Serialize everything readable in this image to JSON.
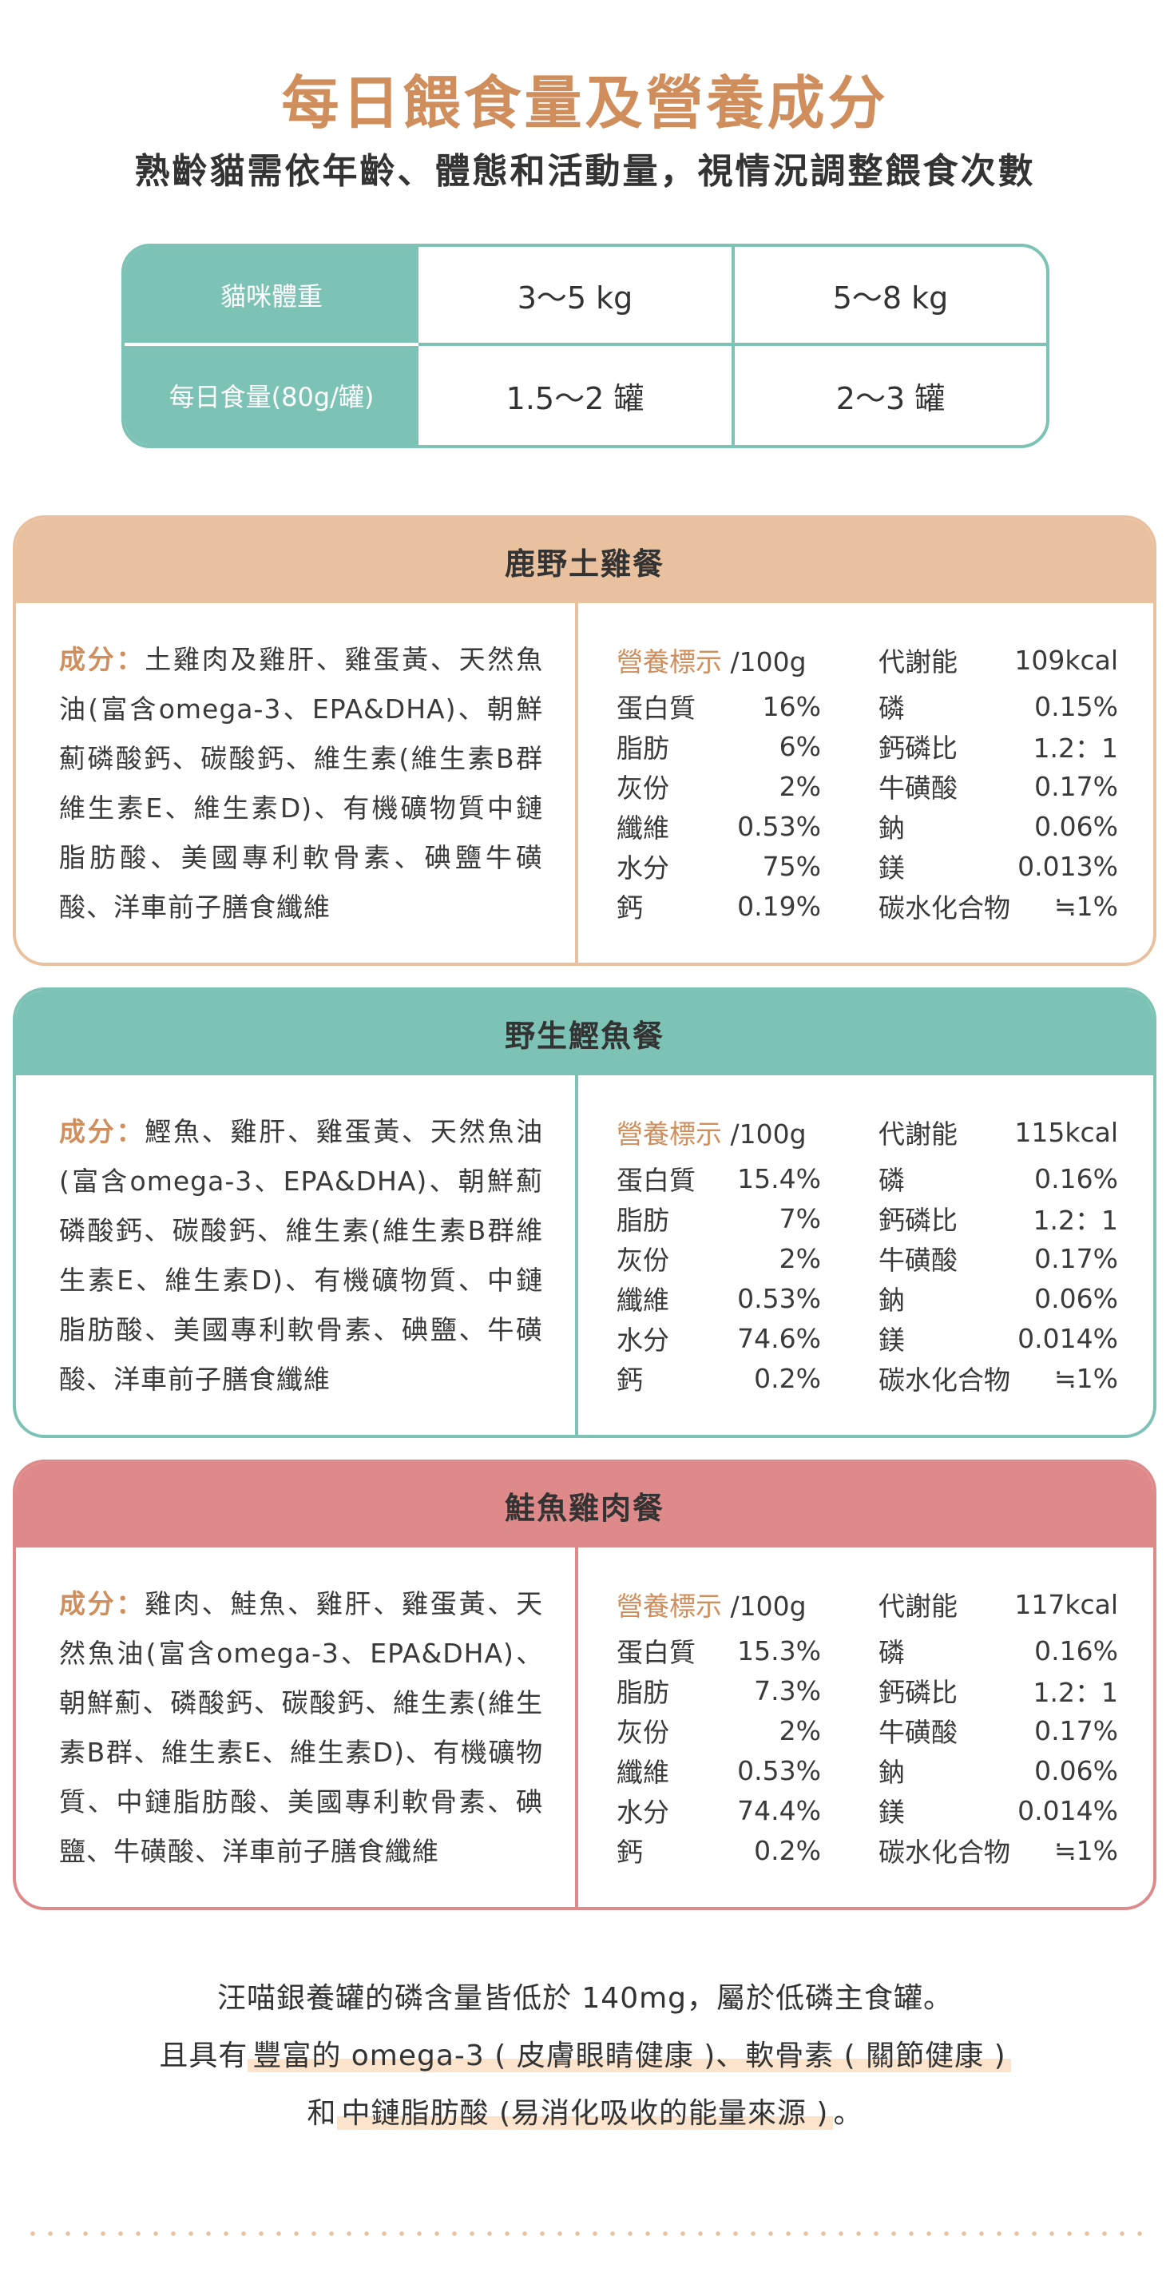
{
  "header": {
    "title": "每日餵食量及營養成分",
    "subtitle": "熟齡貓需依年齡、體態和活動量，視情況調整餵食次數"
  },
  "feeding_table": {
    "weight_label": "貓咪體重",
    "daily_label": "每日食量(80g/罐)",
    "weights": [
      "3～5 kg",
      "5～8 kg"
    ],
    "amounts": [
      "1.5～2 罐",
      "2～3 罐"
    ]
  },
  "cards": [
    {
      "name": "鹿野土雞餐",
      "ingredients_label": "成分：",
      "ingredients": "土雞肉及雞肝、雞蛋黃、天然魚油(富含omega-3、EPA&DHA)、朝鮮薊磷酸鈣、碳酸鈣、維生素(維生素B群維生素E、維生素D)、有機礦物質中鏈脂肪酸、美國專利軟骨素、碘鹽牛磺酸、洋車前子膳食纖維",
      "nutri_label": "營養標示",
      "nutri_unit": "/100g",
      "col_a": [
        {
          "k": "蛋白質",
          "v": "16%"
        },
        {
          "k": "脂肪",
          "v": "6%"
        },
        {
          "k": "灰份",
          "v": "2%"
        },
        {
          "k": "纖維",
          "v": "0.53%"
        },
        {
          "k": "水分",
          "v": "75%"
        },
        {
          "k": "鈣",
          "v": "0.19%"
        }
      ],
      "col_b": [
        {
          "k": "代謝能",
          "v": "109kcal"
        },
        {
          "k": "磷",
          "v": "0.15%"
        },
        {
          "k": "鈣磷比",
          "v": "1.2：1"
        },
        {
          "k": "牛磺酸",
          "v": "0.17%"
        },
        {
          "k": "鈉",
          "v": "0.06%"
        },
        {
          "k": "鎂",
          "v": "0.013%"
        },
        {
          "k": "碳水化合物",
          "v": "≒1%"
        }
      ]
    },
    {
      "name": "野生鰹魚餐",
      "ingredients_label": "成分：",
      "ingredients": "鰹魚、雞肝、雞蛋黃、天然魚油(富含omega-3、EPA&DHA)、朝鮮薊磷酸鈣、碳酸鈣、維生素(維生素B群維生素E、維生素D)、有機礦物質、中鏈脂肪酸、美國專利軟骨素、碘鹽、牛磺酸、洋車前子膳食纖維",
      "nutri_label": "營養標示",
      "nutri_unit": "/100g",
      "col_a": [
        {
          "k": "蛋白質",
          "v": "15.4%"
        },
        {
          "k": "脂肪",
          "v": "7%"
        },
        {
          "k": "灰份",
          "v": "2%"
        },
        {
          "k": "纖維",
          "v": "0.53%"
        },
        {
          "k": "水分",
          "v": "74.6%"
        },
        {
          "k": "鈣",
          "v": "0.2%"
        }
      ],
      "col_b": [
        {
          "k": "代謝能",
          "v": "115kcal"
        },
        {
          "k": "磷",
          "v": "0.16%"
        },
        {
          "k": "鈣磷比",
          "v": "1.2：1"
        },
        {
          "k": "牛磺酸",
          "v": "0.17%"
        },
        {
          "k": "鈉",
          "v": "0.06%"
        },
        {
          "k": "鎂",
          "v": "0.014%"
        },
        {
          "k": "碳水化合物",
          "v": "≒1%"
        }
      ]
    },
    {
      "name": "鮭魚雞肉餐",
      "ingredients_label": "成分：",
      "ingredients": "雞肉、鮭魚、雞肝、雞蛋黃、天然魚油(富含omega-3、EPA&DHA)、朝鮮薊、磷酸鈣、碳酸鈣、維生素(維生素B群、維生素E、維生素D)、有機礦物質、中鏈脂肪酸、美國專利軟骨素、碘鹽、牛磺酸、洋車前子膳食纖維",
      "nutri_label": "營養標示",
      "nutri_unit": "/100g",
      "col_a": [
        {
          "k": "蛋白質",
          "v": "15.3%"
        },
        {
          "k": "脂肪",
          "v": "7.3%"
        },
        {
          "k": "灰份",
          "v": "2%"
        },
        {
          "k": "纖維",
          "v": "0.53%"
        },
        {
          "k": "水分",
          "v": "74.4%"
        },
        {
          "k": "鈣",
          "v": "0.2%"
        }
      ],
      "col_b": [
        {
          "k": "代謝能",
          "v": "117kcal"
        },
        {
          "k": "磷",
          "v": "0.16%"
        },
        {
          "k": "鈣磷比",
          "v": "1.2：1"
        },
        {
          "k": "牛磺酸",
          "v": "0.17%"
        },
        {
          "k": "鈉",
          "v": "0.06%"
        },
        {
          "k": "鎂",
          "v": "0.014%"
        },
        {
          "k": "碳水化合物",
          "v": "≒1%"
        }
      ]
    }
  ],
  "footer": {
    "line1": "汪喵銀養罐的磷含量皆低於 140mg，屬於低磷主食罐。",
    "line2_pre": "且具有",
    "line2_hl": "豐富的 omega-3 ( 皮膚眼睛健康 )、軟骨素 ( 關節健康 )",
    "line3_pre": "和",
    "line3_hl": "中鏈脂肪酸 (易消化吸收的能量來源 )",
    "line3_post": "。"
  }
}
